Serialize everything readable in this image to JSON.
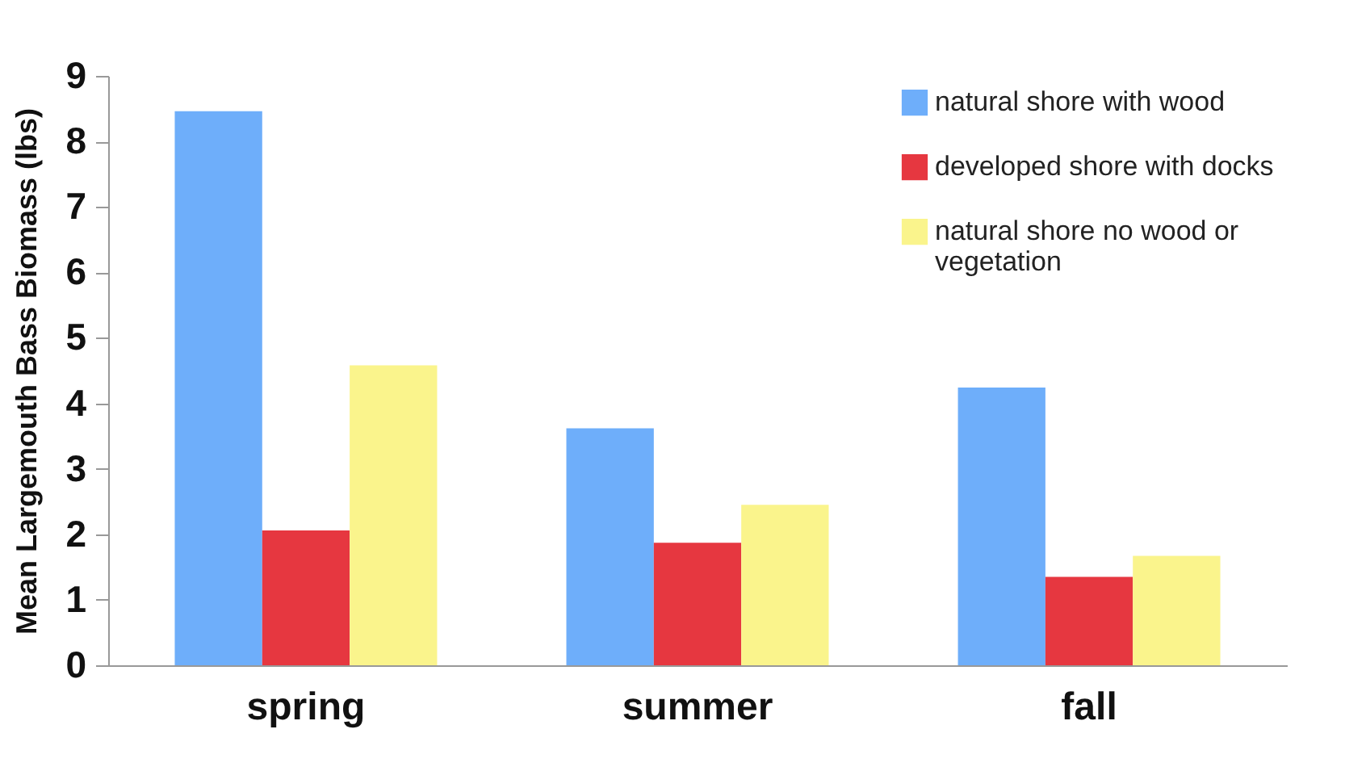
{
  "chart_data": {
    "type": "bar",
    "ylabel": "Mean Largemouth Bass Biomass (lbs)",
    "categories": [
      "spring",
      "summer",
      "fall"
    ],
    "series": [
      {
        "name": "natural shore with wood",
        "color": "#6eaefa",
        "values": [
          8.46,
          3.62,
          4.24
        ]
      },
      {
        "name": "developed shore with docks",
        "color": "#e63740",
        "values": [
          2.06,
          1.87,
          1.35
        ]
      },
      {
        "name": "natural shore no wood or vegetation",
        "color": "#faf48c",
        "values": [
          4.58,
          2.45,
          1.67
        ]
      }
    ],
    "ylim": [
      0,
      9
    ],
    "yticks": [
      0,
      1,
      2,
      3,
      4,
      5,
      6,
      7,
      8,
      9
    ],
    "grid": false,
    "legend": "top right"
  }
}
